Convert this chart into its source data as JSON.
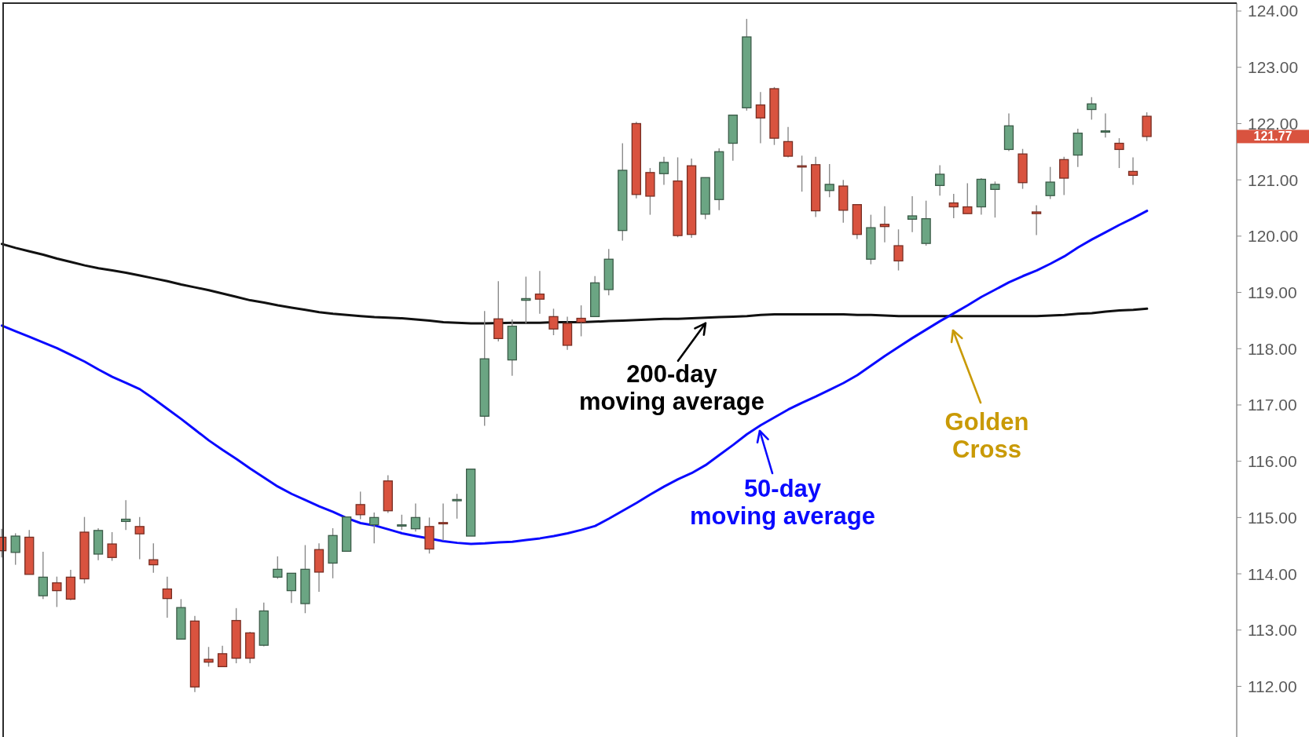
{
  "chart_data": {
    "type": "candlestick",
    "categories": [
      null,
      null,
      null,
      null,
      null,
      null,
      null,
      null,
      null,
      null,
      null,
      null,
      null,
      null,
      null,
      null,
      null,
      null,
      null,
      null,
      null,
      null,
      null,
      null,
      null,
      null,
      null,
      null,
      null,
      null,
      null,
      null,
      null,
      null,
      null,
      null,
      null,
      null,
      null,
      null,
      null,
      null,
      null,
      null,
      null,
      null,
      null,
      null,
      null,
      null,
      null,
      null,
      null,
      null,
      null,
      null,
      null,
      null,
      null,
      null,
      null,
      null,
      null,
      null,
      null,
      null,
      null,
      null,
      null,
      null,
      null,
      null,
      null,
      null,
      null,
      null,
      null,
      null,
      null,
      null,
      null,
      null,
      null,
      null
    ],
    "ohlc": [
      [
        114.65,
        114.8,
        114.29,
        114.41
      ],
      [
        114.38,
        114.72,
        114.16,
        114.67
      ],
      [
        114.65,
        114.78,
        113.99,
        113.99
      ],
      [
        113.61,
        114.39,
        113.55,
        113.94
      ],
      [
        113.84,
        113.95,
        113.41,
        113.7
      ],
      [
        113.94,
        114.07,
        113.53,
        113.55
      ],
      [
        114.74,
        115.01,
        113.83,
        113.91
      ],
      [
        114.35,
        114.81,
        114.24,
        114.77
      ],
      [
        114.53,
        114.74,
        114.23,
        114.29
      ],
      [
        114.93,
        115.31,
        114.78,
        114.97
      ],
      [
        114.84,
        115.01,
        114.26,
        114.71
      ],
      [
        114.25,
        114.54,
        114.02,
        114.16
      ],
      [
        113.73,
        113.95,
        113.22,
        113.56
      ],
      [
        112.84,
        113.55,
        112.84,
        113.4
      ],
      [
        113.16,
        113.25,
        111.9,
        111.99
      ],
      [
        112.48,
        112.7,
        112.35,
        112.43
      ],
      [
        112.58,
        112.72,
        112.34,
        112.35
      ],
      [
        113.17,
        113.39,
        112.41,
        112.5
      ],
      [
        112.95,
        112.97,
        112.41,
        112.5
      ],
      [
        112.73,
        113.49,
        112.71,
        113.34
      ],
      [
        113.94,
        114.31,
        113.91,
        114.08
      ],
      [
        113.7,
        114.01,
        113.48,
        114.01
      ],
      [
        113.47,
        114.51,
        113.3,
        114.08
      ],
      [
        114.43,
        114.54,
        113.68,
        114.03
      ],
      [
        114.19,
        114.81,
        113.92,
        114.68
      ],
      [
        114.4,
        115.01,
        114.4,
        115.01
      ],
      [
        115.23,
        115.46,
        114.97,
        115.05
      ],
      [
        114.87,
        115.09,
        114.54,
        115.0
      ],
      [
        115.65,
        115.75,
        115.08,
        115.12
      ],
      [
        114.85,
        115.05,
        114.78,
        114.87
      ],
      [
        114.8,
        115.25,
        114.75,
        115.0
      ],
      [
        114.84,
        115.0,
        114.36,
        114.44
      ],
      [
        114.91,
        115.25,
        114.59,
        114.89
      ],
      [
        115.3,
        115.42,
        114.98,
        115.32
      ],
      [
        114.67,
        115.86,
        114.67,
        115.86
      ],
      [
        116.8,
        118.67,
        116.63,
        117.82
      ],
      [
        118.53,
        119.2,
        118.13,
        118.18
      ],
      [
        117.8,
        118.52,
        117.52,
        118.4
      ],
      [
        118.86,
        119.28,
        118.45,
        118.89
      ],
      [
        118.97,
        119.38,
        118.62,
        118.88
      ],
      [
        118.57,
        118.71,
        118.24,
        118.35
      ],
      [
        118.45,
        118.57,
        117.98,
        118.06
      ],
      [
        118.54,
        118.77,
        118.22,
        118.47
      ],
      [
        118.57,
        119.29,
        118.57,
        119.17
      ],
      [
        119.05,
        119.77,
        118.95,
        119.59
      ],
      [
        120.1,
        121.65,
        119.92,
        121.17
      ],
      [
        122.0,
        122.03,
        120.67,
        120.74
      ],
      [
        121.13,
        121.21,
        120.38,
        120.71
      ],
      [
        121.11,
        121.41,
        120.91,
        121.31
      ],
      [
        120.98,
        121.4,
        119.98,
        120.01
      ],
      [
        121.25,
        121.38,
        119.97,
        120.03
      ],
      [
        120.39,
        121.04,
        120.3,
        121.04
      ],
      [
        120.65,
        121.56,
        120.46,
        121.5
      ],
      [
        121.65,
        122.15,
        121.34,
        122.15
      ],
      [
        122.28,
        123.86,
        122.23,
        123.54
      ],
      [
        122.33,
        122.56,
        121.65,
        122.1
      ],
      [
        122.62,
        122.65,
        121.62,
        121.74
      ],
      [
        121.68,
        121.94,
        121.4,
        121.42
      ],
      [
        121.25,
        121.43,
        120.79,
        121.23
      ],
      [
        121.27,
        121.41,
        120.34,
        120.45
      ],
      [
        120.81,
        121.28,
        120.69,
        120.92
      ],
      [
        120.89,
        121.0,
        120.24,
        120.46
      ],
      [
        120.56,
        120.56,
        119.95,
        120.03
      ],
      [
        119.59,
        120.38,
        119.5,
        120.15
      ],
      [
        120.21,
        120.53,
        119.89,
        120.17
      ],
      [
        119.83,
        120.12,
        119.39,
        119.56
      ],
      [
        120.3,
        120.71,
        120.07,
        120.36
      ],
      [
        119.87,
        120.63,
        119.83,
        120.31
      ],
      [
        120.9,
        121.26,
        120.72,
        121.1
      ],
      [
        120.59,
        120.75,
        120.32,
        120.52
      ],
      [
        120.52,
        120.94,
        120.4,
        120.4
      ],
      [
        120.52,
        121.03,
        120.38,
        121.01
      ],
      [
        120.83,
        120.97,
        120.33,
        120.92
      ],
      [
        121.54,
        122.18,
        121.51,
        121.96
      ],
      [
        121.46,
        121.55,
        120.84,
        120.95
      ],
      [
        120.43,
        120.55,
        120.02,
        120.4
      ],
      [
        120.72,
        121.23,
        120.66,
        120.96
      ],
      [
        121.36,
        121.41,
        120.73,
        121.03
      ],
      [
        121.44,
        121.91,
        121.23,
        121.83
      ],
      [
        122.25,
        122.47,
        122.07,
        122.35
      ],
      [
        121.85,
        122.18,
        121.75,
        121.87
      ],
      [
        121.65,
        121.74,
        121.21,
        121.54
      ],
      [
        121.15,
        121.4,
        120.91,
        121.08
      ],
      [
        122.13,
        122.2,
        121.69,
        121.77
      ]
    ],
    "colors": [
      "#d9533f",
      "#6ba583",
      "#d9533f",
      "#6ba583",
      "#d9533f",
      "#d9533f",
      "#d9533f",
      "#6ba583",
      "#d9533f",
      "#6ba583",
      "#d9533f",
      "#d9533f",
      "#d9533f",
      "#6ba583",
      "#d9533f",
      "#d9533f",
      "#d9533f",
      "#d9533f",
      "#d9533f",
      "#6ba583",
      "#6ba583",
      "#6ba583",
      "#6ba583",
      "#d9533f",
      "#6ba583",
      "#6ba583",
      "#d9533f",
      "#6ba583",
      "#d9533f",
      "#6ba583",
      "#6ba583",
      "#d9533f",
      "#d9533f",
      "#6ba583",
      "#6ba583",
      "#6ba583",
      "#d9533f",
      "#6ba583",
      "#6ba583",
      "#d9533f",
      "#d9533f",
      "#d9533f",
      "#d9533f",
      "#6ba583",
      "#6ba583",
      "#6ba583",
      "#d9533f",
      "#d9533f",
      "#6ba583",
      "#d9533f",
      "#d9533f",
      "#6ba583",
      "#6ba583",
      "#6ba583",
      "#6ba583",
      "#d9533f",
      "#d9533f",
      "#d9533f",
      "#d9533f",
      "#d9533f",
      "#6ba583",
      "#d9533f",
      "#d9533f",
      "#6ba583",
      "#d9533f",
      "#d9533f",
      "#6ba583",
      "#6ba583",
      "#6ba583",
      "#d9533f",
      "#d9533f",
      "#6ba583",
      "#6ba583",
      "#6ba583",
      "#d9533f",
      "#d9533f",
      "#6ba583",
      "#d9533f",
      "#6ba583",
      "#6ba583",
      "#6ba583",
      "#d9533f",
      "#d9533f",
      "#d9533f"
    ],
    "series": [
      {
        "type": "line",
        "color": "#111111",
        "values": [
          119.86,
          119.79,
          119.73,
          119.67,
          119.6,
          119.54,
          119.48,
          119.43,
          119.39,
          119.35,
          119.3,
          119.25,
          119.2,
          119.14,
          119.09,
          119.04,
          118.98,
          118.92,
          118.86,
          118.82,
          118.77,
          118.73,
          118.69,
          118.65,
          118.62,
          118.6,
          118.58,
          118.56,
          118.55,
          118.54,
          118.52,
          118.5,
          118.47,
          118.46,
          118.45,
          118.45,
          null,
          118.46,
          118.46,
          118.46,
          118.47,
          118.47,
          118.47,
          118.48,
          118.49,
          118.5,
          118.51,
          118.52,
          118.53,
          118.53,
          118.54,
          118.55,
          118.56,
          118.57,
          118.58,
          118.6,
          118.61,
          118.61,
          118.61,
          118.61,
          118.61,
          118.61,
          118.6,
          118.6,
          118.59,
          118.58,
          118.58,
          118.58,
          118.58,
          118.58,
          118.58,
          118.58,
          118.58,
          118.58,
          118.58,
          118.58,
          118.59,
          118.6,
          118.62,
          118.63,
          118.66,
          118.68,
          118.69,
          118.71
        ]
      },
      {
        "type": "line",
        "color": "#0a0aff",
        "values": [
          118.41,
          118.31,
          118.21,
          118.11,
          118.01,
          117.89,
          117.77,
          117.63,
          117.5,
          117.39,
          117.28,
          117.11,
          116.93,
          116.75,
          116.56,
          116.37,
          116.2,
          116.04,
          115.87,
          115.71,
          115.55,
          115.42,
          115.31,
          115.2,
          115.1,
          114.99,
          114.9,
          114.86,
          114.79,
          114.72,
          114.67,
          null,
          114.58,
          114.55,
          114.53,
          114.54,
          114.56,
          114.57,
          114.6,
          114.63,
          114.67,
          114.72,
          114.78,
          114.85,
          114.98,
          115.12,
          115.26,
          115.41,
          115.55,
          115.68,
          115.79,
          115.93,
          116.11,
          116.29,
          116.48,
          116.64,
          116.78,
          116.92,
          117.04,
          117.15,
          117.27,
          117.39,
          117.53,
          117.7,
          117.87,
          118.03,
          118.19,
          118.34,
          118.49,
          118.63,
          118.77,
          118.92,
          119.05,
          119.18,
          119.29,
          119.39,
          119.51,
          119.64,
          119.8,
          119.94,
          120.07,
          120.2,
          120.32,
          120.45
        ]
      }
    ],
    "ylim": [
      111.1,
      124.14
    ],
    "yticks": [
      {
        "value": 112,
        "label": "112.00"
      },
      {
        "value": 113,
        "label": "113.00"
      },
      {
        "value": 114,
        "label": "114.00"
      },
      {
        "value": 115,
        "label": "115.00"
      },
      {
        "value": 116,
        "label": "116.00"
      },
      {
        "value": 117,
        "label": "117.00"
      },
      {
        "value": 118,
        "label": "118.00"
      },
      {
        "value": 119,
        "label": "119.00"
      },
      {
        "value": 120,
        "label": "120.00"
      },
      {
        "value": 121,
        "label": "121.00"
      },
      {
        "value": 122,
        "label": "122.00"
      },
      {
        "value": 123,
        "label": "123.00"
      },
      {
        "value": 124,
        "label": "124.00"
      }
    ],
    "tick_labels": "y",
    "annotations": [
      {
        "text": "200-day\nmoving average",
        "y": 118.55
      },
      "50-day\nmoving average",
      "Golden\nCross",
      "121.77"
    ]
  }
}
